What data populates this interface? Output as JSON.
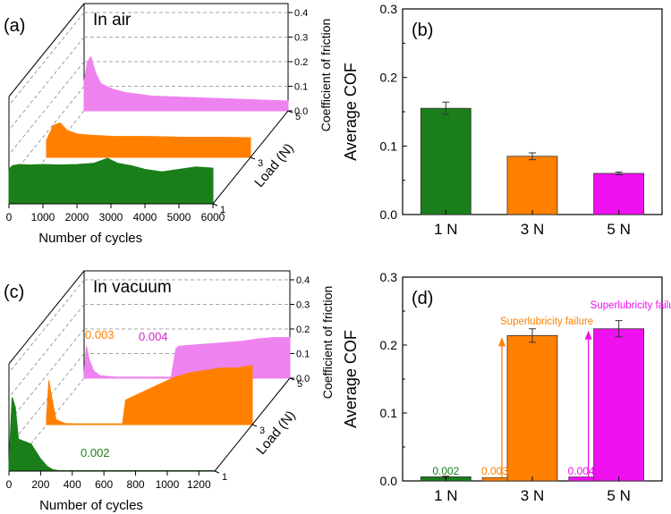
{
  "colors": {
    "green": "#1a7f1a",
    "orange": "#ff8000",
    "magenta": "#ee10ee",
    "pink": "#ee82ee",
    "axis": "#000000",
    "grid": "#888888"
  },
  "chart_data": [
    {
      "id": "a",
      "type": "area",
      "panel_label": "(a)",
      "title": "In air",
      "xlabel": "Number of cycles",
      "ylabel": "Load (N)",
      "zlabel": "Coefficient of friction",
      "x_ticks": [
        "0",
        "1000",
        "2000",
        "3000",
        "4000",
        "5000",
        "6000"
      ],
      "xlim": [
        0,
        6000
      ],
      "y_ticks": [
        "1",
        "3",
        "5"
      ],
      "z_ticks": [
        "0.0",
        "0.1",
        "0.2",
        "0.3",
        "0.4"
      ],
      "zlim": [
        0,
        0.4
      ],
      "series": [
        {
          "name": "1 N",
          "load": 1,
          "color": "green",
          "x": [
            0,
            100,
            300,
            600,
            1000,
            1500,
            2000,
            2500,
            2900,
            3200,
            3600,
            4000,
            4500,
            5000,
            5500,
            6000
          ],
          "y": [
            0.14,
            0.155,
            0.16,
            0.158,
            0.16,
            0.158,
            0.16,
            0.165,
            0.185,
            0.165,
            0.155,
            0.14,
            0.13,
            0.14,
            0.15,
            0.145
          ]
        },
        {
          "name": "3 N",
          "load": 3,
          "color": "orange",
          "x": [
            0,
            200,
            400,
            600,
            900,
            1300,
            2000,
            3000,
            4000,
            5000,
            6000
          ],
          "y": [
            0.07,
            0.13,
            0.14,
            0.11,
            0.095,
            0.09,
            0.085,
            0.085,
            0.082,
            0.082,
            0.08
          ]
        },
        {
          "name": "5 N",
          "load": 5,
          "color": "pink",
          "x": [
            0,
            100,
            200,
            350,
            500,
            800,
            1200,
            2000,
            3000,
            4000,
            5000,
            6000
          ],
          "y": [
            0.12,
            0.2,
            0.22,
            0.15,
            0.11,
            0.09,
            0.075,
            0.06,
            0.055,
            0.05,
            0.045,
            0.04
          ]
        }
      ]
    },
    {
      "id": "b",
      "type": "bar",
      "panel_label": "(b)",
      "ylabel": "Average COF",
      "categories": [
        "1 N",
        "3 N",
        "5 N"
      ],
      "values": [
        0.155,
        0.085,
        0.06
      ],
      "errors": [
        0.009,
        0.005,
        0.002
      ],
      "colors": [
        "green",
        "orange",
        "magenta"
      ],
      "ylim": [
        0,
        0.3
      ],
      "y_ticks": [
        "0.0",
        "0.1",
        "0.2",
        "0.3"
      ]
    },
    {
      "id": "c",
      "type": "area",
      "panel_label": "(c)",
      "title": "In vacuum",
      "xlabel": "Number of cycles",
      "ylabel": "Load (N)",
      "zlabel": "Coefficient of friction",
      "x_ticks": [
        "0",
        "200",
        "400",
        "600",
        "800",
        "1000",
        "1200"
      ],
      "xlim": [
        0,
        1300
      ],
      "y_ticks": [
        "1",
        "3",
        "5"
      ],
      "z_ticks": [
        "0.0",
        "0.1",
        "0.2",
        "0.3",
        "0.4"
      ],
      "zlim": [
        0,
        0.4
      ],
      "annotations": [
        "0.002",
        "0.003",
        "0.004"
      ],
      "series": [
        {
          "name": "1 N",
          "load": 1,
          "color": "green",
          "x": [
            0,
            20,
            40,
            60,
            100,
            140,
            170,
            200,
            240,
            280,
            320,
            1300
          ],
          "y": [
            0.03,
            0.3,
            0.26,
            0.13,
            0.12,
            0.11,
            0.08,
            0.05,
            0.02,
            0.005,
            0.002,
            0.002
          ]
        },
        {
          "name": "3 N",
          "load": 3,
          "color": "orange",
          "x": [
            0,
            15,
            30,
            60,
            120,
            200,
            300,
            400,
            480,
            500,
            600,
            700,
            800,
            900,
            1000,
            1100,
            1200,
            1300
          ],
          "y": [
            0.03,
            0.18,
            0.12,
            0.02,
            0.004,
            0.003,
            0.003,
            0.003,
            0.003,
            0.1,
            0.13,
            0.16,
            0.19,
            0.21,
            0.22,
            0.23,
            0.23,
            0.24
          ]
        },
        {
          "name": "5 N",
          "load": 5,
          "color": "pink",
          "x": [
            0,
            15,
            30,
            60,
            100,
            200,
            300,
            400,
            500,
            550,
            580,
            600,
            700,
            800,
            900,
            1000,
            1100,
            1200,
            1300
          ],
          "y": [
            0.02,
            0.13,
            0.08,
            0.03,
            0.01,
            0.004,
            0.004,
            0.004,
            0.004,
            0.004,
            0.12,
            0.13,
            0.135,
            0.14,
            0.145,
            0.15,
            0.16,
            0.165,
            0.165
          ]
        }
      ]
    },
    {
      "id": "d",
      "type": "bar",
      "panel_label": "(d)",
      "ylabel": "Average COF",
      "categories": [
        "1 N",
        "3 N",
        "5 N"
      ],
      "values": [
        0.006,
        0.214,
        0.224
      ],
      "errors": [
        0.001,
        0.01,
        0.012
      ],
      "low_values": [
        0.002,
        0.003,
        0.004
      ],
      "low_labels": [
        "0.002",
        "0.003",
        "0.004"
      ],
      "colors": [
        "green",
        "orange",
        "magenta"
      ],
      "ylim": [
        0,
        0.3
      ],
      "y_ticks": [
        "0.0",
        "0.1",
        "0.2",
        "0.3"
      ],
      "annotations": [
        {
          "text": "Superlubricity failure",
          "category": "3 N",
          "color": "orange"
        },
        {
          "text": "Superlubricity failure",
          "category": "5 N",
          "color": "magenta"
        }
      ]
    }
  ]
}
